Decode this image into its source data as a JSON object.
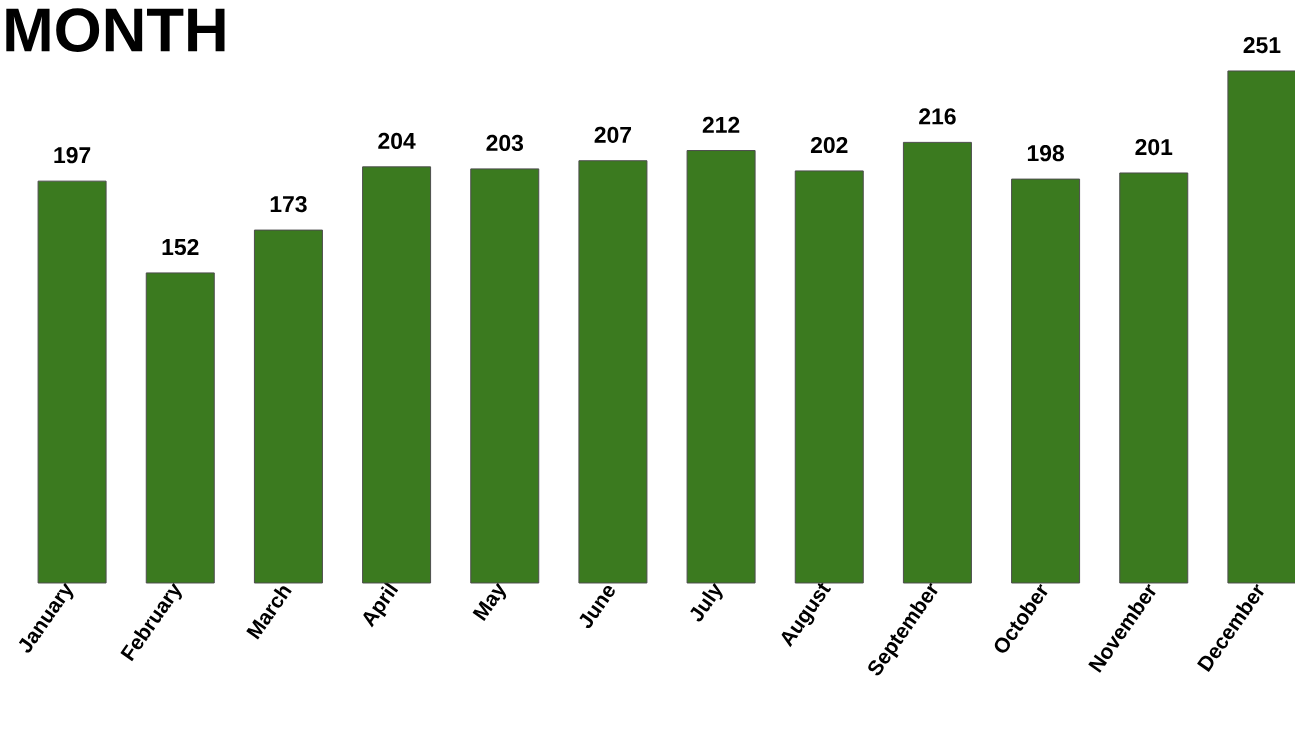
{
  "chart_data": {
    "type": "bar",
    "title": "MONTH",
    "categories": [
      "January",
      "February",
      "March",
      "April",
      "May",
      "June",
      "July",
      "August",
      "September",
      "October",
      "November",
      "December"
    ],
    "values": [
      197,
      152,
      173,
      204,
      203,
      207,
      212,
      202,
      216,
      198,
      201,
      251
    ],
    "color": "#3b7a1f",
    "data_labels": true
  }
}
